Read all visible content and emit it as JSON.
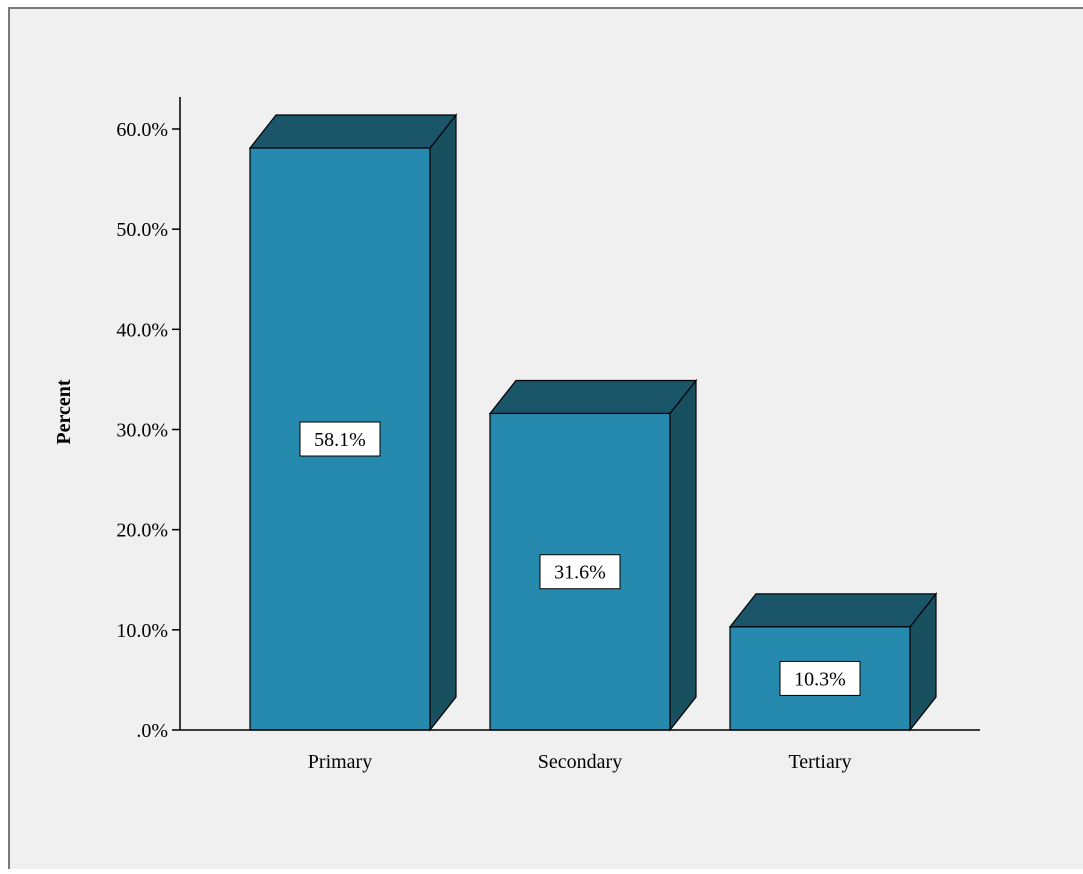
{
  "chart_data": {
    "type": "bar",
    "title": "",
    "xlabel": "",
    "ylabel": "Percent",
    "categories": [
      "Primary",
      "Secondary",
      "Tertiary"
    ],
    "values": [
      58.1,
      31.6,
      10.3
    ],
    "data_labels": [
      "58.1%",
      "31.6%",
      "10.3%"
    ],
    "ylim": [
      0,
      60
    ],
    "yticks": [
      0,
      10,
      20,
      30,
      40,
      50,
      60
    ],
    "ytick_labels": [
      ".0%",
      "10.0%",
      "20.0%",
      "30.0%",
      "40.0%",
      "50.0%",
      "60.0%"
    ],
    "style": "3d",
    "grid": false,
    "legend": "none",
    "colors": {
      "bar_front": "#258AAD",
      "bar_top": "#1A5569",
      "bar_side": "#18505F",
      "background": "#F0F0F0",
      "border": "#7A7A7A"
    }
  }
}
